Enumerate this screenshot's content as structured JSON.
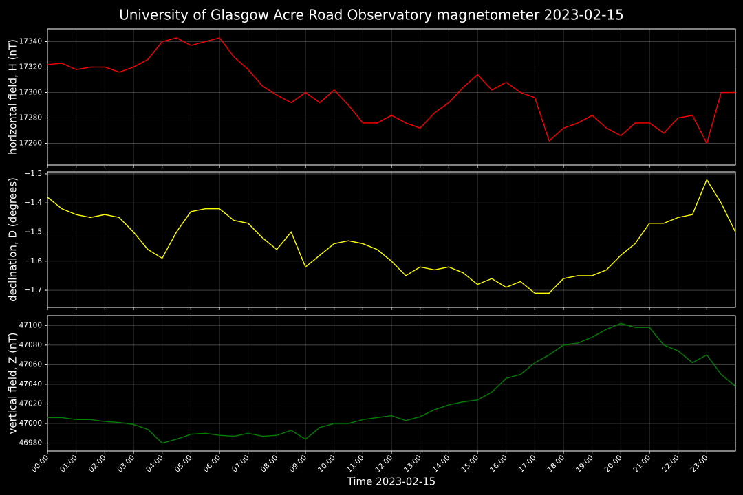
{
  "title": "University of Glasgow Acre Road Observatory magnetometer 2023-02-15",
  "chart_data": [
    {
      "type": "line",
      "ylabel": "horizontal field, H (nT)",
      "color": "#ff0000",
      "x": [
        0,
        0.5,
        1,
        1.5,
        2,
        2.5,
        3,
        3.5,
        4,
        4.5,
        5,
        5.5,
        6,
        6.5,
        7,
        7.5,
        8,
        8.5,
        9,
        9.5,
        10,
        10.5,
        11,
        11.5,
        12,
        12.5,
        13,
        13.5,
        14,
        14.5,
        15,
        15.5,
        16,
        16.5,
        17,
        17.5,
        18,
        18.5,
        19,
        19.5,
        20,
        20.5,
        21,
        21.5,
        22,
        22.5,
        23,
        23.5,
        24
      ],
      "values": [
        17322,
        17323,
        17318,
        17320,
        17320,
        17316,
        17320,
        17326,
        17340,
        17343,
        17337,
        17340,
        17343,
        17328,
        17318,
        17305,
        17298,
        17292,
        17300,
        17292,
        17302,
        17290,
        17276,
        17276,
        17282,
        17276,
        17272,
        17284,
        17292,
        17304,
        17314,
        17302,
        17308,
        17300,
        17296,
        17262,
        17272,
        17276,
        17282,
        17272,
        17266,
        17276,
        17276,
        17268,
        17280,
        17282,
        17260,
        17300,
        17300
      ],
      "xlim": [
        0,
        24
      ],
      "ylim": [
        17243,
        17350
      ],
      "yticks": [
        17260,
        17280,
        17300,
        17320,
        17340
      ],
      "grid": true
    },
    {
      "type": "line",
      "ylabel": "declination, D (degrees)",
      "color": "#ffff00",
      "x": [
        0,
        0.5,
        1,
        1.5,
        2,
        2.5,
        3,
        3.5,
        4,
        4.5,
        5,
        5.5,
        6,
        6.5,
        7,
        7.5,
        8,
        8.5,
        9,
        9.5,
        10,
        10.5,
        11,
        11.5,
        12,
        12.5,
        13,
        13.5,
        14,
        14.5,
        15,
        15.5,
        16,
        16.5,
        17,
        17.5,
        18,
        18.5,
        19,
        19.5,
        20,
        20.5,
        21,
        21.5,
        22,
        22.5,
        23,
        23.5,
        24
      ],
      "values": [
        -1.38,
        -1.42,
        -1.44,
        -1.45,
        -1.44,
        -1.45,
        -1.5,
        -1.56,
        -1.59,
        -1.5,
        -1.43,
        -1.42,
        -1.42,
        -1.46,
        -1.47,
        -1.52,
        -1.56,
        -1.5,
        -1.62,
        -1.58,
        -1.54,
        -1.53,
        -1.54,
        -1.56,
        -1.6,
        -1.65,
        -1.62,
        -1.63,
        -1.62,
        -1.64,
        -1.68,
        -1.66,
        -1.69,
        -1.67,
        -1.71,
        -1.71,
        -1.66,
        -1.65,
        -1.65,
        -1.63,
        -1.58,
        -1.54,
        -1.47,
        -1.47,
        -1.45,
        -1.44,
        -1.32,
        -1.4,
        -1.5
      ],
      "xlim": [
        0,
        24
      ],
      "ylim": [
        -1.759,
        -1.293
      ],
      "yticks": [
        {
          "value": -1.7,
          "label": "−1.7"
        },
        {
          "value": -1.6,
          "label": "−1.6"
        },
        {
          "value": -1.5,
          "label": "−1.5"
        },
        {
          "value": -1.4,
          "label": "−1.4"
        },
        {
          "value": -1.3,
          "label": "−1.3"
        }
      ],
      "grid": true
    },
    {
      "type": "line",
      "ylabel": "vertical field, Z (nT)",
      "xlabel": "Time 2023-02-15",
      "color": "#008000",
      "x": [
        0,
        0.5,
        1,
        1.5,
        2,
        2.5,
        3,
        3.5,
        4,
        4.5,
        5,
        5.5,
        6,
        6.5,
        7,
        7.5,
        8,
        8.5,
        9,
        9.5,
        10,
        10.5,
        11,
        11.5,
        12,
        12.5,
        13,
        13.5,
        14,
        14.5,
        15,
        15.5,
        16,
        16.5,
        17,
        17.5,
        18,
        18.5,
        19,
        19.5,
        20,
        20.5,
        21,
        21.5,
        22,
        22.5,
        23,
        23.5,
        24
      ],
      "values": [
        47006,
        47006,
        47004,
        47004,
        47002,
        47001,
        46999,
        46994,
        46980,
        46984,
        46989,
        46990,
        46988,
        46987,
        46990,
        46987,
        46988,
        46993,
        46984,
        46996,
        47000,
        47000,
        47004,
        47006,
        47008,
        47003,
        47007,
        47014,
        47019,
        47022,
        47024,
        47032,
        47046,
        47050,
        47062,
        47070,
        47080,
        47082,
        47088,
        47096,
        47102,
        47098,
        47098,
        47080,
        47074,
        47062,
        47070,
        47050,
        47038
      ],
      "xlim": [
        0,
        24
      ],
      "ylim": [
        46972,
        47110
      ],
      "yticks": [
        46980,
        47000,
        47020,
        47040,
        47060,
        47080,
        47100
      ],
      "xticks": [
        {
          "value": 0,
          "label": "00:00"
        },
        {
          "value": 1,
          "label": "01:00"
        },
        {
          "value": 2,
          "label": "02:00"
        },
        {
          "value": 3,
          "label": "03:00"
        },
        {
          "value": 4,
          "label": "04:00"
        },
        {
          "value": 5,
          "label": "05:00"
        },
        {
          "value": 6,
          "label": "06:00"
        },
        {
          "value": 7,
          "label": "07:00"
        },
        {
          "value": 8,
          "label": "08:00"
        },
        {
          "value": 9,
          "label": "09:00"
        },
        {
          "value": 10,
          "label": "10:00"
        },
        {
          "value": 11,
          "label": "11:00"
        },
        {
          "value": 12,
          "label": "12:00"
        },
        {
          "value": 13,
          "label": "13:00"
        },
        {
          "value": 14,
          "label": "14:00"
        },
        {
          "value": 15,
          "label": "15:00"
        },
        {
          "value": 16,
          "label": "16:00"
        },
        {
          "value": 17,
          "label": "17:00"
        },
        {
          "value": 18,
          "label": "18:00"
        },
        {
          "value": 19,
          "label": "19:00"
        },
        {
          "value": 20,
          "label": "20:00"
        },
        {
          "value": 21,
          "label": "21:00"
        },
        {
          "value": 22,
          "label": "22:00"
        },
        {
          "value": 23,
          "label": "23:00"
        }
      ],
      "grid": true
    }
  ]
}
